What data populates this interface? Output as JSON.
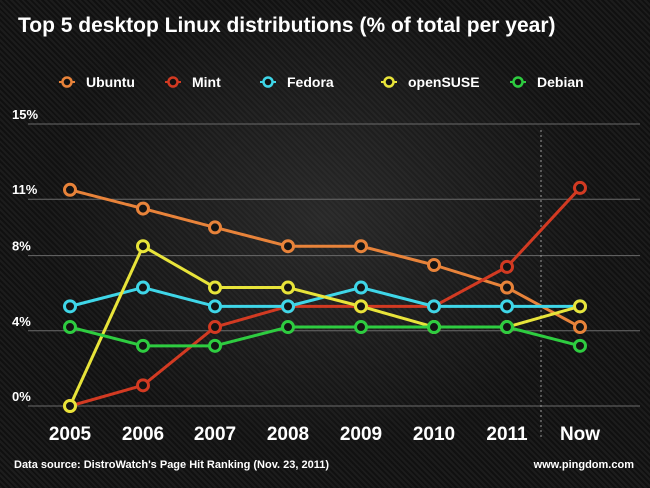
{
  "chart_data": {
    "type": "line",
    "title": "Top 5 desktop Linux distributions (% of total per year)",
    "xlabel": "",
    "ylabel": "",
    "categories": [
      "2005",
      "2006",
      "2007",
      "2008",
      "2009",
      "2010",
      "2011",
      "Now"
    ],
    "y_ticks": [
      0,
      4,
      8,
      11,
      15
    ],
    "y_tick_labels": [
      "0%",
      "4%",
      "8%",
      "11%",
      "15%"
    ],
    "ylim": [
      0,
      15
    ],
    "grid": true,
    "legend_position": "top",
    "series": [
      {
        "name": "Ubuntu",
        "color": "#e8833a",
        "values": [
          11.5,
          10.5,
          9.5,
          8.5,
          8.5,
          7.5,
          6.3,
          4.2
        ]
      },
      {
        "name": "Mint",
        "color": "#d23a22",
        "values": [
          0,
          1.1,
          4.2,
          5.3,
          5.3,
          5.3,
          7.4,
          11.6
        ]
      },
      {
        "name": "Fedora",
        "color": "#3fd6e8",
        "values": [
          5.3,
          6.3,
          5.3,
          5.3,
          6.3,
          5.3,
          5.3,
          5.3
        ]
      },
      {
        "name": "openSUSE",
        "color": "#e8e43a",
        "values": [
          0,
          8.5,
          6.3,
          6.3,
          5.3,
          4.2,
          4.2,
          5.3
        ]
      },
      {
        "name": "Debian",
        "color": "#2ecc40",
        "values": [
          4.2,
          3.2,
          3.2,
          4.2,
          4.2,
          4.2,
          4.2,
          3.2
        ]
      }
    ]
  },
  "footer": {
    "source": "Data source: DistroWatch's Page Hit Ranking (Nov. 23, 2011)",
    "site": "www.pingdom.com"
  }
}
